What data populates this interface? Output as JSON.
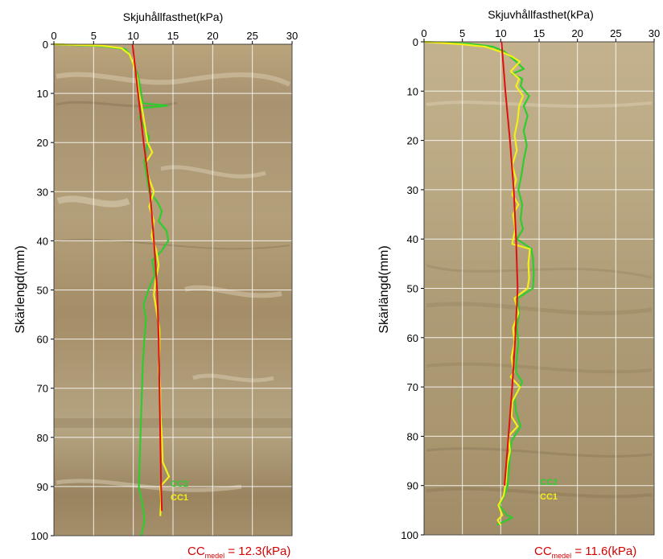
{
  "chart_data": [
    {
      "type": "line",
      "xlabel": "Skjuhållfasthet(kPa)",
      "ylabel": "Skärlengd(mm)",
      "x_ticks": [
        "0",
        "5",
        "10",
        "15",
        "20",
        "25",
        "30"
      ],
      "y_ticks": [
        "0",
        "10",
        "20",
        "30",
        "40",
        "50",
        "60",
        "70",
        "80",
        "90",
        "100"
      ],
      "xlim": [
        0,
        30
      ],
      "ylim": [
        100,
        0
      ],
      "grid": true,
      "background": "photo of clay sample (tan)",
      "legend": {
        "placement": "lower-right",
        "items": [
          "CC2",
          "CC1"
        ]
      },
      "annotation": {
        "prefix": "CC",
        "subscript": "medel",
        "value": " = 12.3(kPa)"
      },
      "series": [
        {
          "name": "CC2",
          "color": "#2ecc2e",
          "points": [
            [
              0,
              0
            ],
            [
              6,
              0.4
            ],
            [
              9,
              1
            ],
            [
              9.5,
              2
            ],
            [
              10,
              4
            ],
            [
              10.5,
              6
            ],
            [
              10.8,
              8
            ],
            [
              11,
              10
            ],
            [
              11.2,
              12
            ],
            [
              14.3,
              12.5
            ],
            [
              11.2,
              13
            ],
            [
              10.8,
              15
            ],
            [
              11.4,
              17
            ],
            [
              12,
              19
            ],
            [
              11.7,
              21
            ],
            [
              11.4,
              24
            ],
            [
              11.7,
              27
            ],
            [
              12,
              30
            ],
            [
              13,
              32
            ],
            [
              13.6,
              34
            ],
            [
              13.2,
              36
            ],
            [
              14.2,
              38
            ],
            [
              14.4,
              40
            ],
            [
              13.6,
              42
            ],
            [
              12.4,
              44
            ],
            [
              12.7,
              47
            ],
            [
              11.9,
              50
            ],
            [
              11.3,
              53
            ],
            [
              11.6,
              56
            ],
            [
              11.4,
              60
            ],
            [
              11.2,
              65
            ],
            [
              11.1,
              70
            ],
            [
              11,
              75
            ],
            [
              10.9,
              80
            ],
            [
              10.8,
              85
            ],
            [
              10.7,
              90
            ],
            [
              11.3,
              95
            ],
            [
              11.4,
              97
            ],
            [
              11,
              100
            ]
          ]
        },
        {
          "name": "CC1",
          "color": "#f2ef1a",
          "points": [
            [
              0,
              0
            ],
            [
              6,
              0.3
            ],
            [
              8.5,
              0.8
            ],
            [
              9.5,
              2
            ],
            [
              10,
              4
            ],
            [
              10.5,
              7
            ],
            [
              10.7,
              10
            ],
            [
              11,
              12
            ],
            [
              11.2,
              14
            ],
            [
              11.5,
              17
            ],
            [
              11.8,
              20
            ],
            [
              12.4,
              22
            ],
            [
              11.6,
              24
            ],
            [
              11.9,
              27
            ],
            [
              12.6,
              30
            ],
            [
              12,
              33
            ],
            [
              12.6,
              36
            ],
            [
              12.3,
              39
            ],
            [
              12.9,
              42
            ],
            [
              13.2,
              45
            ],
            [
              12.8,
              48
            ],
            [
              12.6,
              51
            ],
            [
              12.9,
              54
            ],
            [
              13.3,
              58
            ],
            [
              13.3,
              62
            ],
            [
              13.2,
              66
            ],
            [
              13.4,
              70
            ],
            [
              13.4,
              75
            ],
            [
              13.6,
              80
            ],
            [
              13.7,
              85
            ],
            [
              14.5,
              88
            ],
            [
              13.4,
              90
            ],
            [
              13.5,
              93
            ],
            [
              13.4,
              96
            ]
          ]
        },
        {
          "name": "",
          "color": "#e01010",
          "points": [
            [
              9.9,
              0
            ],
            [
              10.6,
              10
            ],
            [
              11.3,
              20
            ],
            [
              12.1,
              30
            ],
            [
              12.6,
              40
            ],
            [
              13,
              50
            ],
            [
              13.2,
              60
            ],
            [
              13.3,
              70
            ],
            [
              13.4,
              80
            ],
            [
              13.5,
              90
            ],
            [
              13.6,
              95
            ]
          ]
        }
      ]
    },
    {
      "type": "line",
      "xlabel": "Skjuvhållfasthet(kPa)",
      "ylabel": "Skärlängd(mm)",
      "x_ticks": [
        "0",
        "5",
        "10",
        "15",
        "20",
        "25",
        "30"
      ],
      "y_ticks": [
        "0",
        "10",
        "20",
        "30",
        "40",
        "50",
        "60",
        "70",
        "80",
        "90",
        "100"
      ],
      "xlim": [
        0,
        30
      ],
      "ylim": [
        100,
        0
      ],
      "grid": true,
      "background": "photo of clay sample (tan)",
      "legend": {
        "placement": "lower-right",
        "items": [
          "CC2",
          "CC1"
        ]
      },
      "annotation": {
        "prefix": "CC",
        "subscript": "medel",
        "value": " = 11.6(kPa)"
      },
      "series": [
        {
          "name": "CC2",
          "color": "#2ecc2e",
          "points": [
            [
              0,
              0
            ],
            [
              6,
              0.4
            ],
            [
              9,
              1
            ],
            [
              10.5,
              2
            ],
            [
              12,
              4
            ],
            [
              13,
              5.5
            ],
            [
              11.5,
              6.5
            ],
            [
              12.8,
              7.5
            ],
            [
              12.6,
              9
            ],
            [
              13.7,
              11
            ],
            [
              13,
              13
            ],
            [
              13.5,
              15
            ],
            [
              13,
              18
            ],
            [
              13.4,
              21
            ],
            [
              13,
              24
            ],
            [
              12.7,
              27
            ],
            [
              12.3,
              30
            ],
            [
              12.8,
              33
            ],
            [
              12.6,
              36
            ],
            [
              12.9,
              38
            ],
            [
              12.1,
              40
            ],
            [
              14,
              42
            ],
            [
              14.2,
              44
            ],
            [
              14.3,
              47
            ],
            [
              14.2,
              50
            ],
            [
              12.2,
              52
            ],
            [
              12.4,
              55
            ],
            [
              12.1,
              58
            ],
            [
              12.3,
              61
            ],
            [
              12.1,
              64
            ],
            [
              12,
              67
            ],
            [
              12.8,
              69
            ],
            [
              11.8,
              72
            ],
            [
              12,
              75
            ],
            [
              12.6,
              78
            ],
            [
              11.4,
              81
            ],
            [
              11.2,
              84
            ],
            [
              11,
              88
            ],
            [
              10.9,
              90
            ],
            [
              10.5,
              92
            ],
            [
              9.8,
              94
            ],
            [
              10.8,
              96
            ],
            [
              11.5,
              96.5
            ],
            [
              9.5,
              98
            ]
          ]
        },
        {
          "name": "CC1",
          "color": "#f2ef1a",
          "points": [
            [
              0,
              0
            ],
            [
              5,
              0.5
            ],
            [
              8,
              1
            ],
            [
              10,
              2
            ],
            [
              11.5,
              3
            ],
            [
              12.5,
              4
            ],
            [
              11.3,
              6
            ],
            [
              12.4,
              7.5
            ],
            [
              12,
              9
            ],
            [
              12.9,
              11
            ],
            [
              12.4,
              13
            ],
            [
              12.2,
              16
            ],
            [
              11.8,
              19
            ],
            [
              12.1,
              22
            ],
            [
              11.5,
              25
            ],
            [
              12,
              28
            ],
            [
              11.5,
              31
            ],
            [
              12.3,
              33
            ],
            [
              11.6,
              35
            ],
            [
              11.9,
              38
            ],
            [
              11.5,
              41
            ],
            [
              13.8,
              42
            ],
            [
              13.6,
              45
            ],
            [
              13.7,
              48
            ],
            [
              13.5,
              50
            ],
            [
              11.8,
              52
            ],
            [
              12.3,
              55
            ],
            [
              11.6,
              58
            ],
            [
              11.8,
              61
            ],
            [
              11.4,
              64
            ],
            [
              11.7,
              67
            ],
            [
              11.3,
              68
            ],
            [
              12.5,
              70
            ],
            [
              11.5,
              73
            ],
            [
              11.4,
              76
            ],
            [
              12.2,
              78
            ],
            [
              11,
              80
            ],
            [
              11.2,
              83
            ],
            [
              10.8,
              86
            ],
            [
              10.7,
              89
            ],
            [
              10.4,
              92
            ],
            [
              9.7,
              94
            ],
            [
              10.2,
              96
            ],
            [
              9.6,
              97
            ],
            [
              10,
              98
            ]
          ]
        },
        {
          "name": "",
          "color": "#e01010",
          "points": [
            [
              10.1,
              0
            ],
            [
              10.6,
              10
            ],
            [
              11.2,
              20
            ],
            [
              11.7,
              30
            ],
            [
              12,
              40
            ],
            [
              12.2,
              50
            ],
            [
              11.9,
              60
            ],
            [
              11.5,
              70
            ],
            [
              11,
              80
            ],
            [
              10.5,
              90
            ]
          ]
        }
      ]
    }
  ]
}
